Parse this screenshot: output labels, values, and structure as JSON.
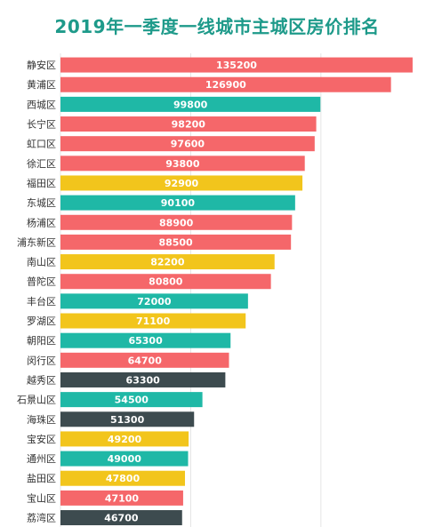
{
  "chart_data": {
    "type": "bar",
    "orientation": "horizontal",
    "title": "2019年一季度一线城市主城区房价排名",
    "xlabel": "",
    "ylabel": "",
    "xlim": [
      0,
      140000
    ],
    "grid": true,
    "legend": "none",
    "colors": {
      "red": "#f5676a",
      "teal": "#1fb8a6",
      "yellow": "#f2c51c",
      "dark": "#3d4b4f"
    },
    "categories": [
      "静安区",
      "黄浦区",
      "西城区",
      "长宁区",
      "虹口区",
      "徐汇区",
      "福田区",
      "东城区",
      "杨浦区",
      "浦东新区",
      "南山区",
      "普陀区",
      "丰台区",
      "罗湖区",
      "朝阳区",
      "闵行区",
      "越秀区",
      "石景山区",
      "海珠区",
      "宝安区",
      "通州区",
      "盐田区",
      "宝山区",
      "荔湾区"
    ],
    "values": [
      135200,
      126900,
      99800,
      98200,
      97600,
      93800,
      92900,
      90100,
      88900,
      88500,
      82200,
      80800,
      72000,
      71100,
      65300,
      64700,
      63300,
      54500,
      51300,
      49200,
      49000,
      47800,
      47100,
      46700
    ],
    "bar_colors": [
      "red",
      "red",
      "teal",
      "red",
      "red",
      "red",
      "yellow",
      "teal",
      "red",
      "red",
      "yellow",
      "red",
      "teal",
      "yellow",
      "teal",
      "red",
      "dark",
      "teal",
      "dark",
      "yellow",
      "teal",
      "yellow",
      "red",
      "dark"
    ]
  }
}
